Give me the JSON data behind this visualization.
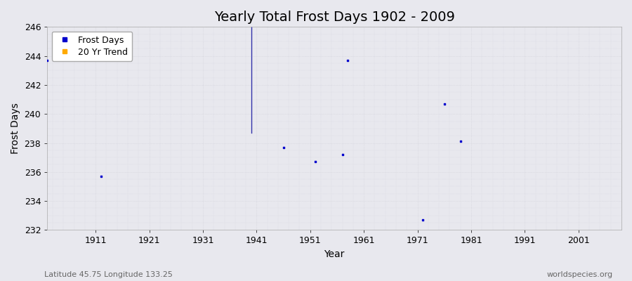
{
  "title": "Yearly Total Frost Days 1902 - 2009",
  "xlabel": "Year",
  "ylabel": "Frost Days",
  "xlim": [
    1902,
    2009
  ],
  "ylim": [
    232,
    246
  ],
  "yticks": [
    232,
    234,
    236,
    238,
    240,
    242,
    244,
    246
  ],
  "xticks": [
    1911,
    1921,
    1931,
    1941,
    1951,
    1961,
    1971,
    1981,
    1991,
    2001
  ],
  "scatter_x": [
    1902,
    1912,
    1946,
    1952,
    1957,
    1958,
    1972,
    1976,
    1979
  ],
  "scatter_y": [
    243.7,
    235.7,
    237.7,
    236.7,
    237.2,
    243.7,
    232.7,
    240.7,
    238.1
  ],
  "trend_x": [
    1940,
    1940
  ],
  "trend_y": [
    246.0,
    238.7
  ],
  "scatter_color": "#0000cc",
  "trend_color": "#3333aa",
  "bg_color": "#e8e8ee",
  "plot_bg": "#e8e8ee",
  "grid_color": "#d0d0d8",
  "legend_labels": [
    "Frost Days",
    "20 Yr Trend"
  ],
  "legend_colors": [
    "#0000cc",
    "#ffaa00"
  ],
  "subtitle_left": "Latitude 45.75 Longitude 133.25",
  "subtitle_right": "worldspecies.org",
  "title_fontsize": 14,
  "axis_fontsize": 10,
  "tick_fontsize": 9,
  "subtitle_fontsize": 8
}
